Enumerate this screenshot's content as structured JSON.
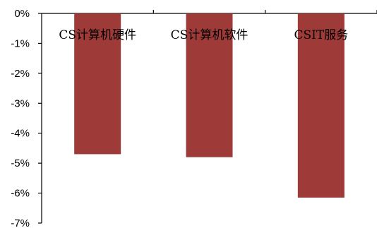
{
  "chart_data": {
    "type": "bar",
    "categories": [
      "CS计算机硬件",
      "CS计算机软件",
      "CSIT服务"
    ],
    "values": [
      -4.7,
      -4.8,
      -6.15
    ],
    "ylim": [
      -7,
      0
    ],
    "yticks": [
      0,
      -1,
      -2,
      -3,
      -4,
      -5,
      -6,
      -7
    ],
    "ytick_labels": [
      "0%",
      "-1%",
      "-2%",
      "-3%",
      "-4%",
      "-5%",
      "-6%",
      "-7%"
    ],
    "title": "",
    "xlabel": "",
    "ylabel": "",
    "grid": false,
    "legend": "none",
    "bar_color": "#9E3A38"
  }
}
